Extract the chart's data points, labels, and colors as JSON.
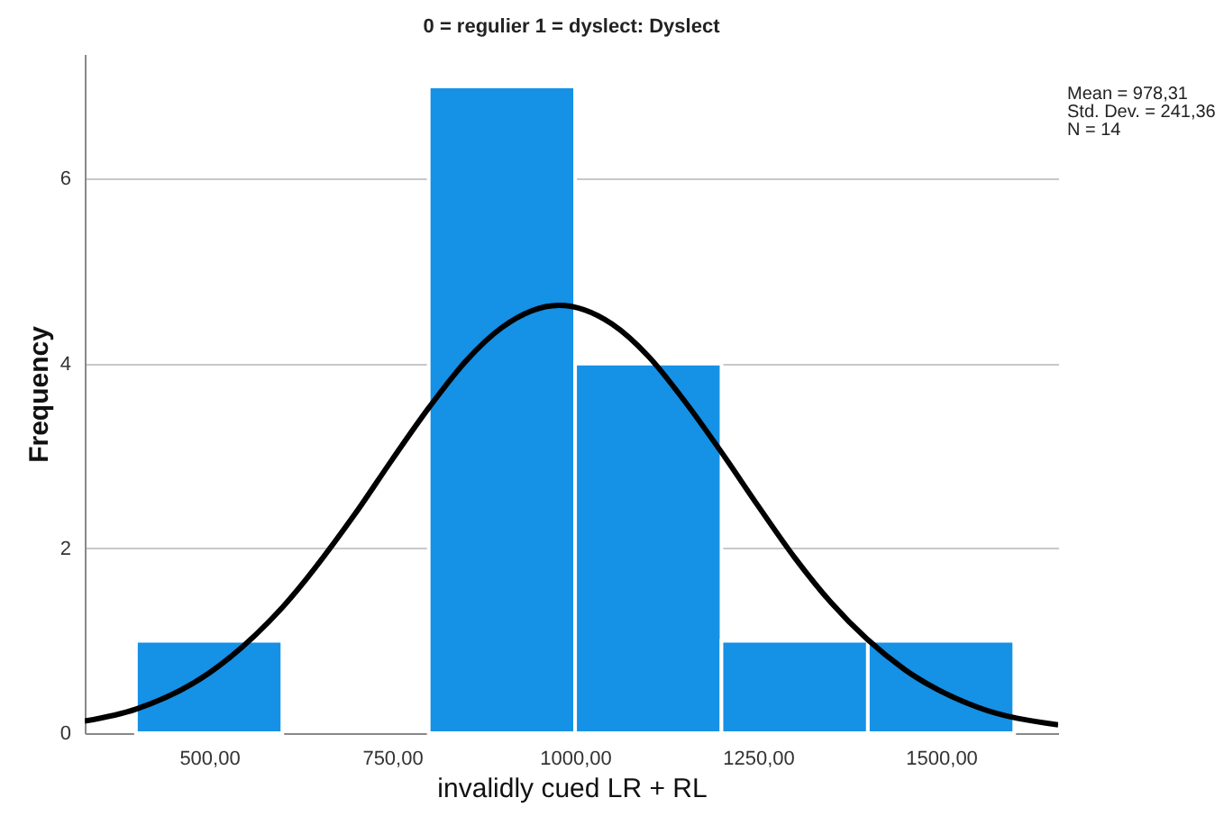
{
  "chart_data": {
    "type": "histogram",
    "title": "0 = regulier 1 = dyslect: Dyslect",
    "xlabel": "invalidly cued LR + RL",
    "ylabel": "Frequency",
    "bins": [
      400,
      600,
      800,
      1000,
      1200,
      1400,
      1600
    ],
    "values": [
      1,
      0,
      7,
      4,
      1,
      1
    ],
    "color": "#1591e6",
    "series": [
      {
        "type": "line",
        "color": "#000000",
        "x": [
          330,
          400,
          500,
          600,
          700,
          750,
          800,
          850,
          900,
          978,
          1050,
          1100,
          1150,
          1200,
          1250,
          1300,
          1350,
          1450,
          1550,
          1660
        ],
        "values": [
          0.13,
          0.26,
          0.65,
          1.36,
          2.38,
          2.96,
          3.52,
          4.02,
          4.39,
          4.63,
          4.43,
          4.08,
          3.59,
          3.04,
          2.46,
          1.9,
          1.41,
          0.69,
          0.28,
          0.09
        ]
      }
    ],
    "xlim": [
      330,
      1660
    ],
    "xticks": [
      {
        "value": 500,
        "label": "500,00"
      },
      {
        "value": 750,
        "label": "750,00"
      },
      {
        "value": 1000,
        "label": "1000,00"
      },
      {
        "value": 1250,
        "label": "1250,00"
      },
      {
        "value": 1500,
        "label": "1500,00"
      }
    ],
    "ylim": [
      0,
      7.35
    ],
    "yticks": [
      0,
      2,
      4,
      6
    ],
    "grid": "y",
    "annotations": [
      "Mean = 978,31\nStd. Dev. = 241,36\nN = 14"
    ]
  }
}
